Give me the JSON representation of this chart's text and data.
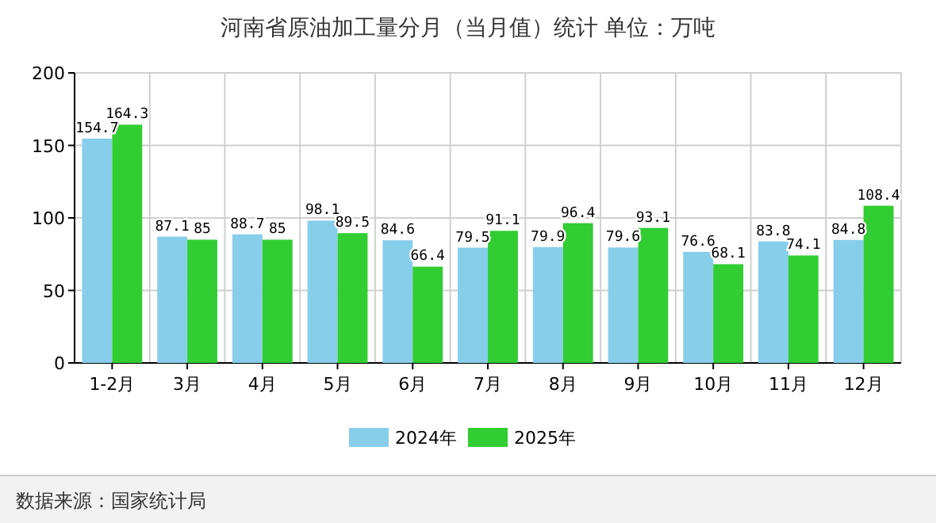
{
  "chart_data": {
    "type": "bar",
    "title": "河南省原油加工量分月（当月值）统计 单位：万吨",
    "categories": [
      "1-2月",
      "3月",
      "4月",
      "5月",
      "6月",
      "7月",
      "8月",
      "9月",
      "10月",
      "11月",
      "12月"
    ],
    "series": [
      {
        "name": "2024年",
        "color": "#87ceeb",
        "values": [
          154.7,
          87.1,
          88.7,
          98.1,
          84.6,
          79.5,
          79.9,
          79.6,
          76.6,
          83.8,
          84.8
        ]
      },
      {
        "name": "2025年",
        "color": "#32cd32",
        "values": [
          164.3,
          85,
          85,
          89.5,
          66.4,
          91.1,
          96.4,
          93.1,
          68.1,
          74.1,
          108.4
        ]
      }
    ],
    "ylim": [
      0,
      200
    ],
    "yticks": [
      0,
      50,
      100,
      150,
      200
    ],
    "grid": true,
    "legend": "bottom",
    "data_labels": true,
    "annotations": [
      "数据来源：国家统计局"
    ]
  }
}
